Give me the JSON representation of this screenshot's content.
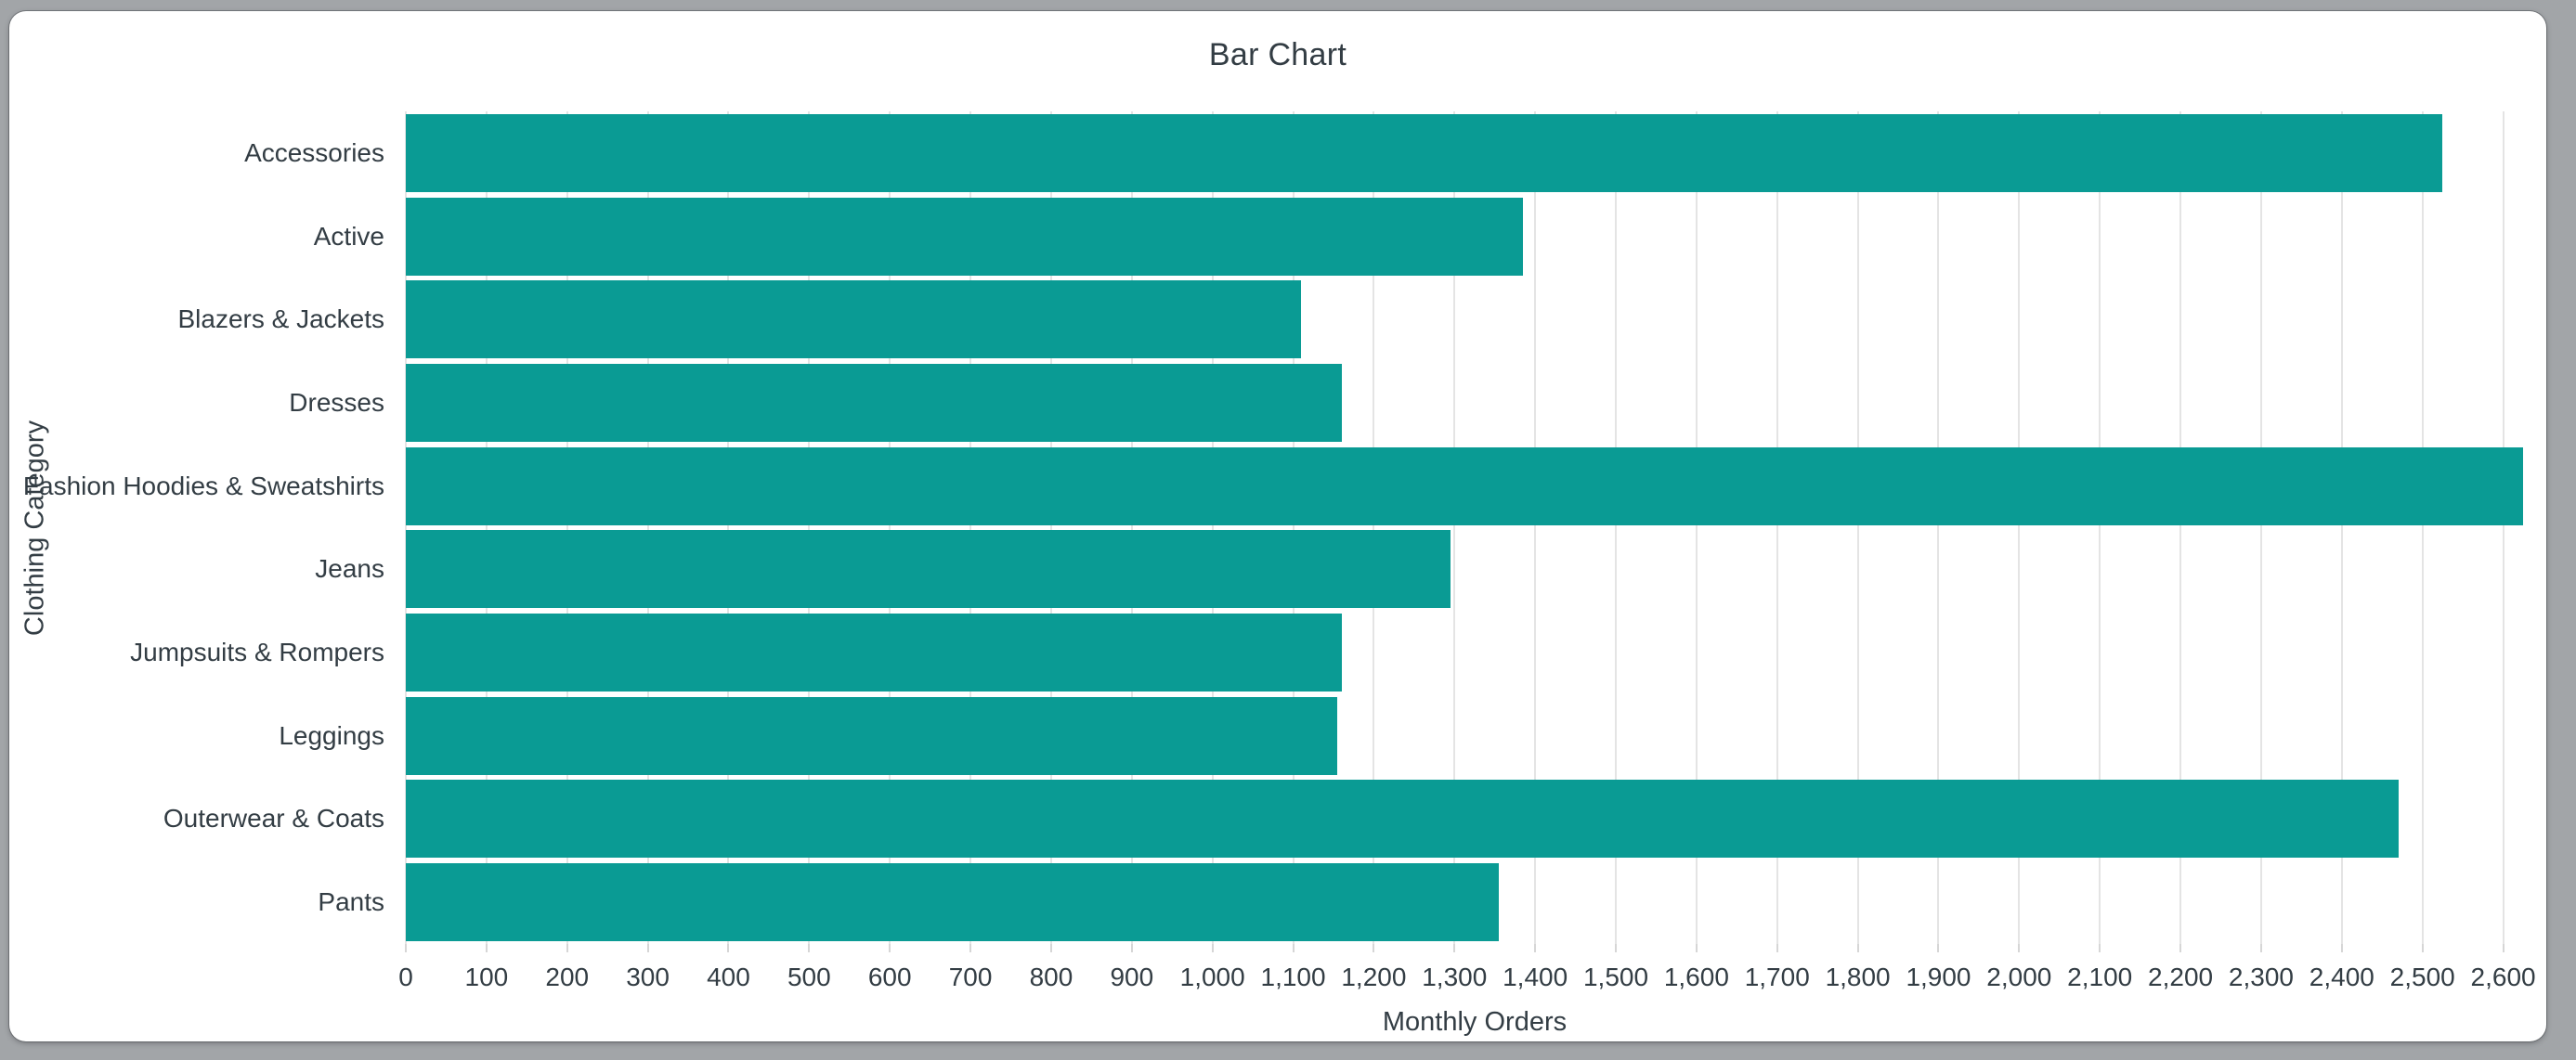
{
  "window": {
    "frame_color": "#a2a5a8",
    "card_color": "#ffffff"
  },
  "chart_data": {
    "type": "bar",
    "orientation": "horizontal",
    "title": "Bar Chart",
    "xlabel": "Monthly Orders",
    "ylabel": "Clothing Category",
    "categories": [
      "Accessories",
      "Active",
      "Blazers & Jackets",
      "Dresses",
      "Fashion Hoodies & Sweatshirts",
      "Jeans",
      "Jumpsuits & Rompers",
      "Leggings",
      "Outerwear & Coats",
      "Pants"
    ],
    "values": [
      2525,
      1385,
      1110,
      1160,
      2625,
      1295,
      1160,
      1155,
      2470,
      1355
    ],
    "xlim": [
      0,
      2650
    ],
    "xticks": [
      0,
      100,
      200,
      300,
      400,
      500,
      600,
      700,
      800,
      900,
      1000,
      1100,
      1200,
      1300,
      1400,
      1500,
      1600,
      1700,
      1800,
      1900,
      2000,
      2100,
      2200,
      2300,
      2400,
      2500,
      2600
    ],
    "grid": true,
    "legend": "none",
    "bar_color": "#0a9b94",
    "gridline_color": "#e4e4e4",
    "tick_mark_color": "#d6d6d6",
    "text_color": "#333d44"
  }
}
